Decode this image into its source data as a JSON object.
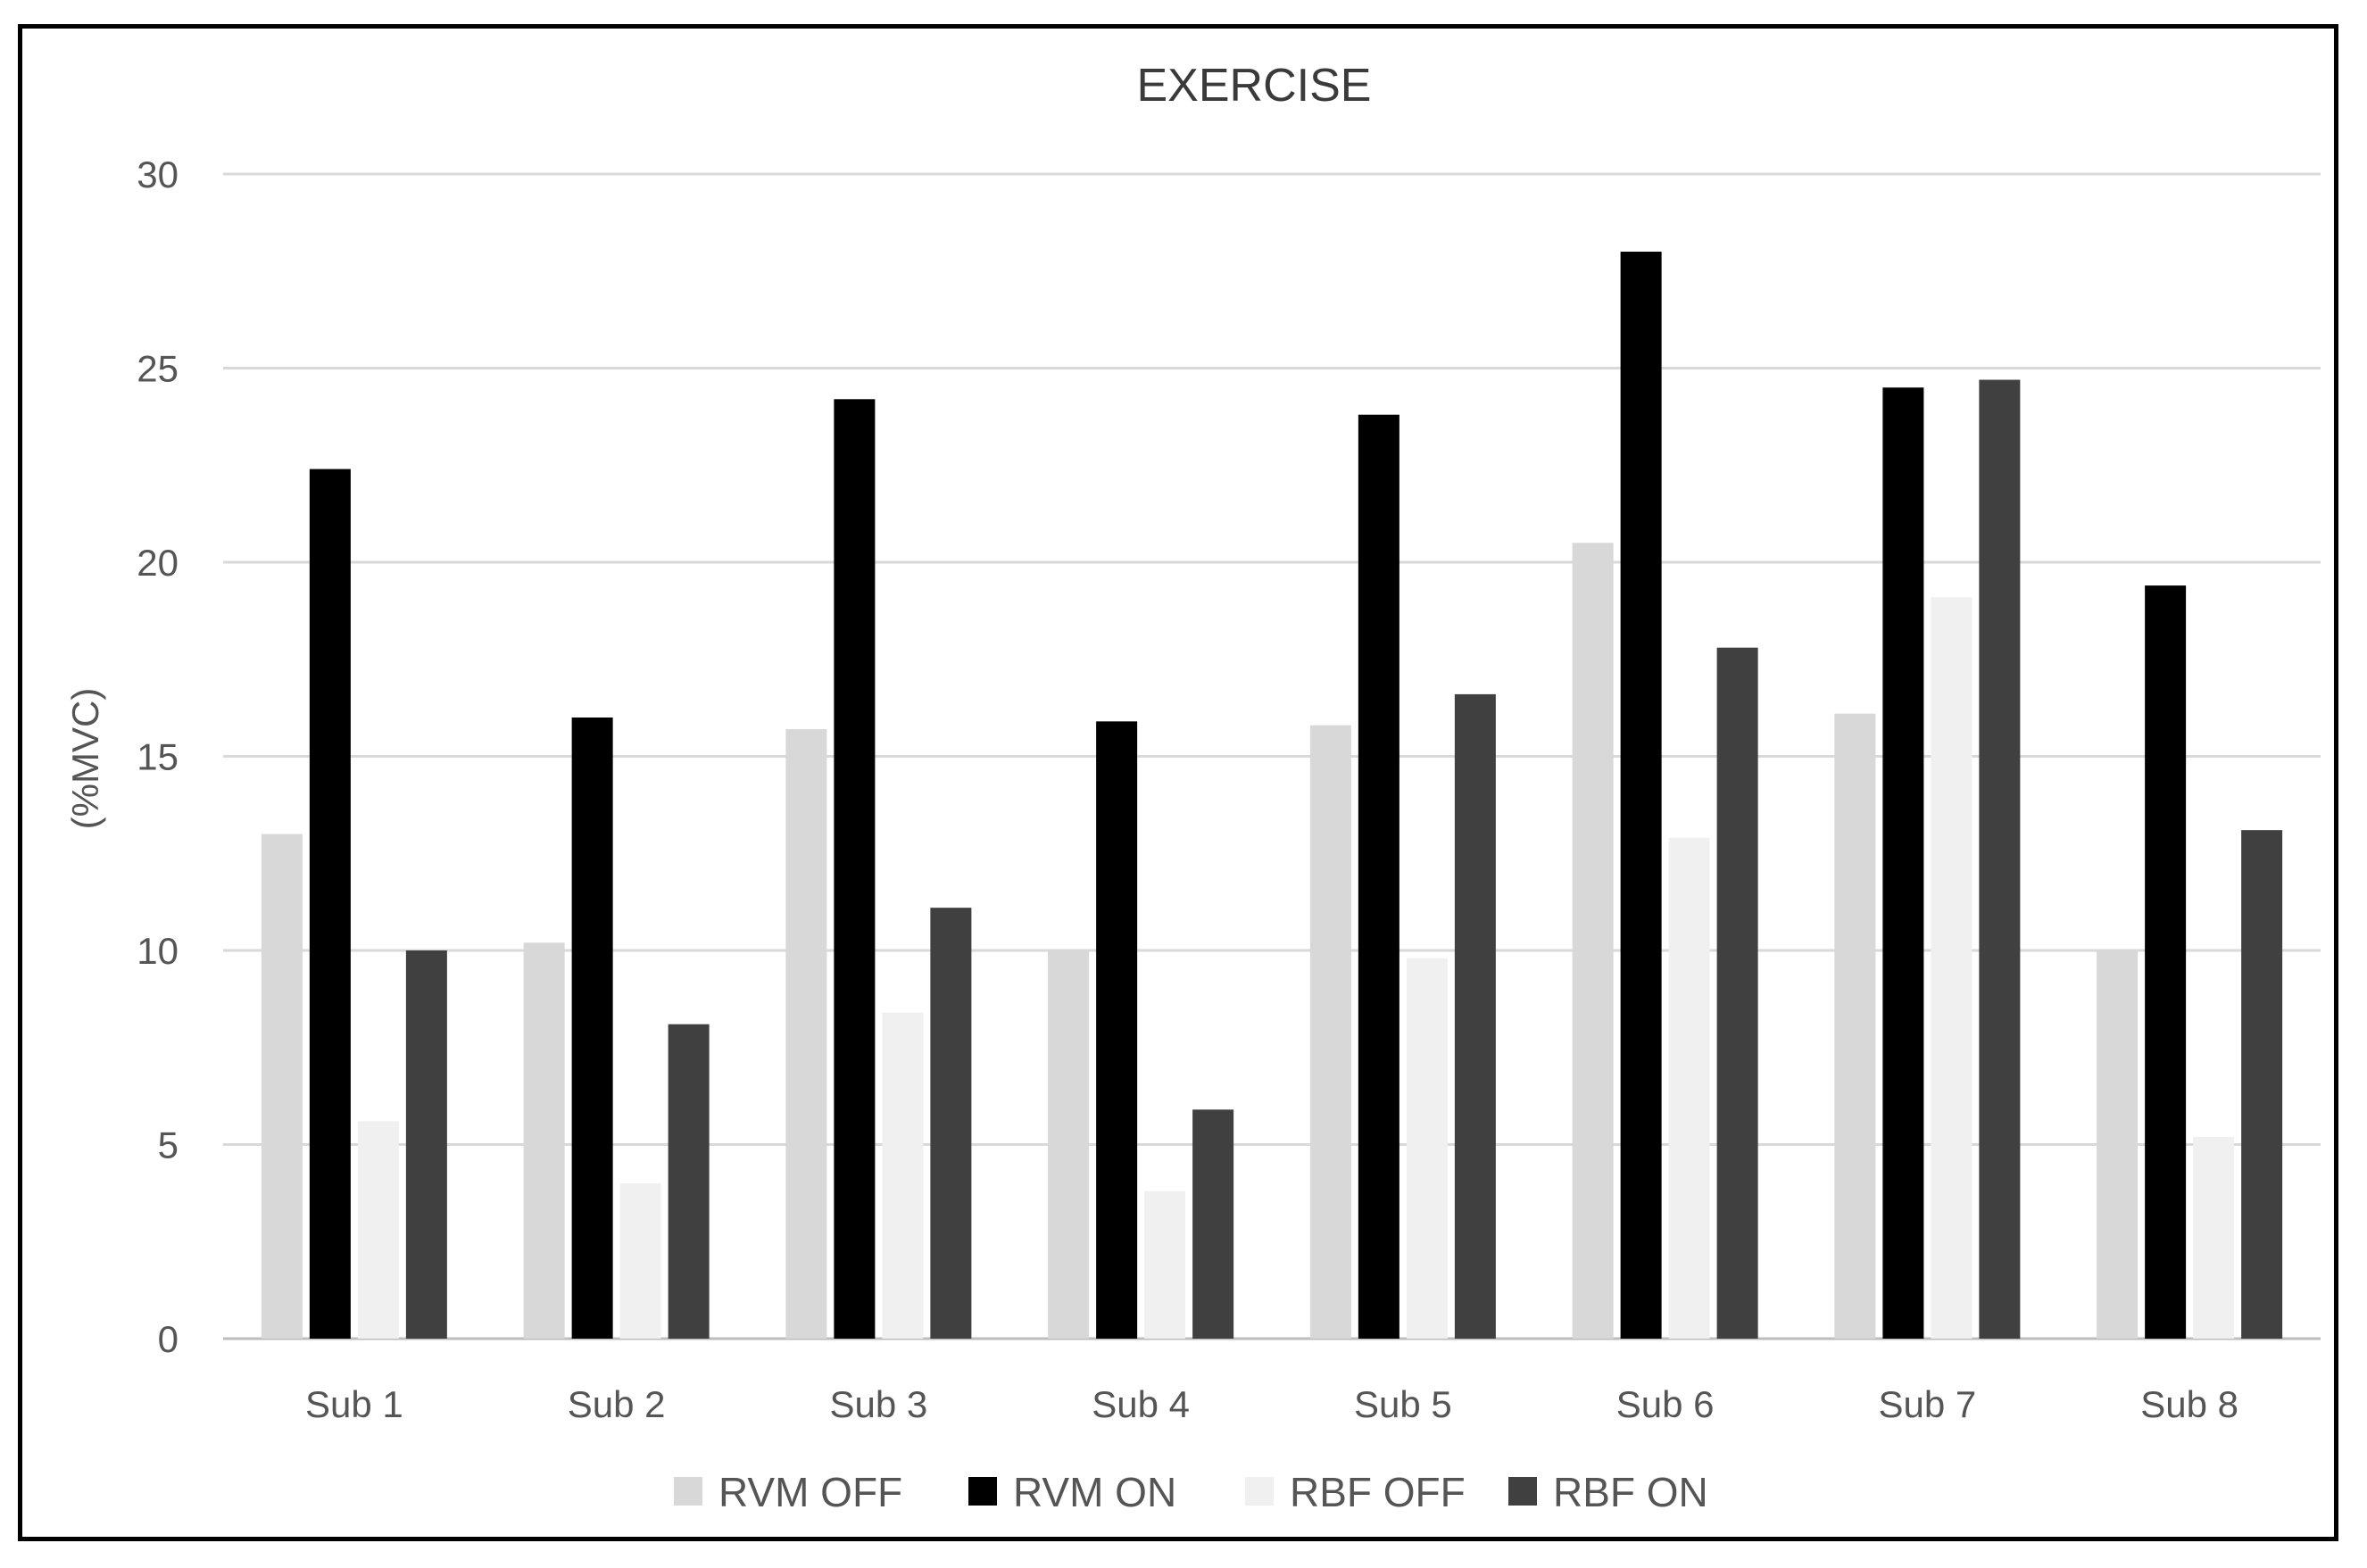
{
  "chart_data": {
    "type": "bar",
    "title": "EXERCISE",
    "xlabel": "",
    "ylabel": "(%MVC)",
    "ylim": [
      0,
      30
    ],
    "yticks": [
      "0",
      "5",
      "10",
      "15",
      "20",
      "25",
      "30"
    ],
    "grid": true,
    "legend_position": "bottom",
    "categories": [
      "Sub 1",
      "Sub 2",
      "Sub 3",
      "Sub 4",
      "Sub 5",
      "Sub 6",
      "Sub 7",
      "Sub 8"
    ],
    "series": [
      {
        "name": "RVM OFF",
        "color": "#d8d8d8",
        "values": [
          13.0,
          10.2,
          15.7,
          10.0,
          15.8,
          20.5,
          16.1,
          10.0
        ]
      },
      {
        "name": "RVM ON",
        "color": "#000000",
        "values": [
          22.4,
          16.0,
          24.2,
          15.9,
          23.8,
          28.0,
          24.5,
          19.4
        ]
      },
      {
        "name": "RBF OFF",
        "color": "#f0f0f0",
        "values": [
          5.6,
          4.0,
          8.4,
          3.8,
          9.8,
          12.9,
          19.1,
          5.2
        ]
      },
      {
        "name": "RBF ON",
        "color": "#404040",
        "values": [
          10.0,
          8.1,
          11.1,
          5.9,
          16.6,
          17.8,
          24.7,
          13.1
        ]
      }
    ]
  }
}
